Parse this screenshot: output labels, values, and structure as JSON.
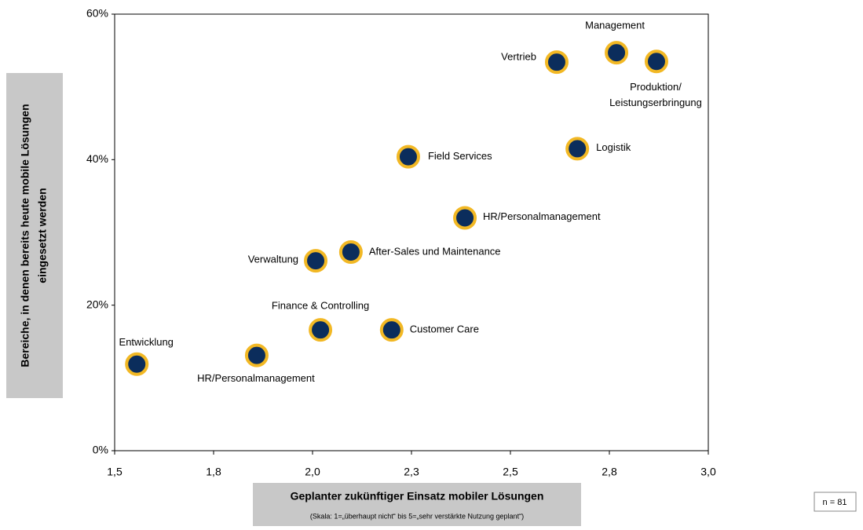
{
  "chart_data": {
    "type": "scatter",
    "xlabel": "Geplanter zukünftiger Einsatz mobiler Lösungen",
    "xlabel_note": "(Skala: 1=„überhaupt nicht“ bis 5=„sehr verstärkte Nutzung geplant“)",
    "ylabel": [
      "Bereiche, in denen bereits heute mobile Lösungen",
      "eingesetzt werden"
    ],
    "note": "n = 81",
    "labels": [
      "Entwicklung",
      "HR/Personalmanagement",
      "Finance & Controlling",
      "Customer Care",
      "Verwaltung",
      "After-Sales und Maintenance",
      "Field Services",
      "HR/Personalmanagement",
      "Logistik",
      "Vertrieb",
      "Management",
      "Produktion/\nLeistungserbringung"
    ],
    "x": [
      1.556,
      1.859,
      2.02,
      2.2,
      2.008,
      2.097,
      2.242,
      2.385,
      2.669,
      2.617,
      2.768,
      2.869
    ],
    "values": [
      11.9,
      13.1,
      16.6,
      16.6,
      26.1,
      27.3,
      40.4,
      32.0,
      41.5,
      53.4,
      54.7,
      53.5
    ],
    "color": "#0b2d5c",
    "edgecolor": "#f2b824",
    "xlim": [
      1.5,
      3.0
    ],
    "xticks": [
      {
        "value": 1.5,
        "label": "1,5"
      },
      {
        "value": 1.75,
        "label": "1,8"
      },
      {
        "value": 2.0,
        "label": "2,0"
      },
      {
        "value": 2.25,
        "label": "2,3"
      },
      {
        "value": 2.5,
        "label": "2,5"
      },
      {
        "value": 2.75,
        "label": "2,8"
      },
      {
        "value": 3.0,
        "label": "3,0"
      }
    ],
    "ylim": [
      0,
      60
    ],
    "yticks": [
      {
        "value": 0,
        "label": "0%"
      },
      {
        "value": 20,
        "label": "20%"
      },
      {
        "value": 40,
        "label": "40%"
      },
      {
        "value": 60,
        "label": "60%"
      }
    ]
  }
}
